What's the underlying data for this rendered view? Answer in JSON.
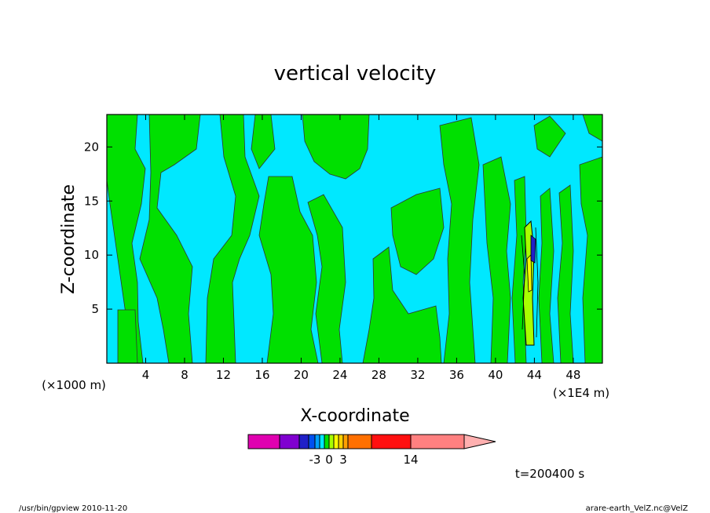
{
  "chart_data": {
    "type": "heatmap",
    "title": "vertical velocity",
    "xlabel": "X-coordinate",
    "ylabel": "Z-coordinate",
    "x_unit_left": "(×1000 m)",
    "x_unit_right": "(×1E4 m)",
    "xlim": [
      0,
      51
    ],
    "ylim": [
      0,
      23
    ],
    "x_ticks": [
      4,
      8,
      12,
      16,
      20,
      24,
      28,
      32,
      36,
      40,
      44,
      48
    ],
    "y_ticks": [
      5,
      10,
      15,
      20
    ],
    "colorbar": {
      "levels": [
        -30,
        -20,
        -10,
        -5,
        -3,
        -2,
        -1,
        0,
        1,
        2,
        3,
        5,
        10,
        14,
        20
      ],
      "colors": [
        "#e000b0",
        "#8000d0",
        "#2020c8",
        "#0050f0",
        "#00a0ff",
        "#00e8ff",
        "#00e000",
        "#a8ff00",
        "#ffff00",
        "#ffd000",
        "#ffa000",
        "#ff7000",
        "#ff1010",
        "#ff8080",
        "#ffb0b0"
      ],
      "tick_labels": [
        "-3",
        "0",
        "3",
        "14"
      ],
      "extend": "max"
    },
    "dominant_colors": {
      "negative": "#00e8ff",
      "positive": "#00e000"
    },
    "annotation_time": "t=200400 s"
  },
  "footer": {
    "left": "/usr/bin/gpview   2010-11-20",
    "right": "arare-earth_VelZ.nc@VelZ"
  }
}
